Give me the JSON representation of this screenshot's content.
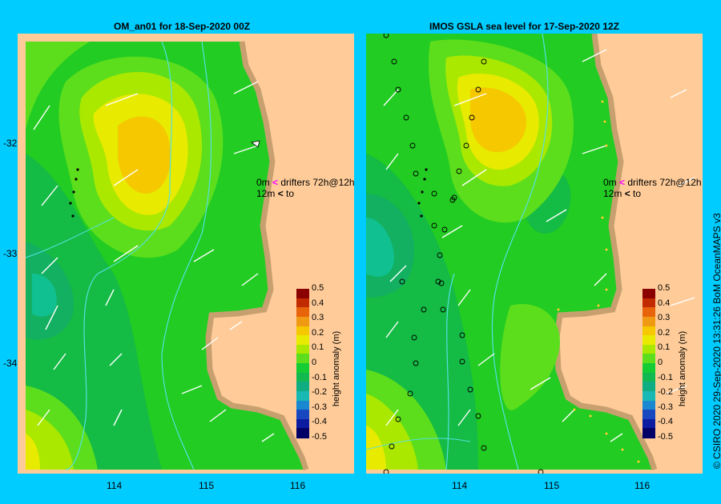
{
  "panels": [
    {
      "title": "OM_an01  for 18-Sep-2020 00Z"
    },
    {
      "title": "IMOS GSLA sea level  for 17-Sep-2020 12Z"
    }
  ],
  "xticks": [
    "114",
    "115",
    "116"
  ],
  "yticks": [
    "-32",
    "-33",
    "-34"
  ],
  "legend": {
    "depth0": "0m",
    "depth12": "12m",
    "drifters": "drifters 72h@12h",
    "to": "to",
    "depth0_arrow_color": "#ff00ff",
    "depth12_arrow_color": "#000000"
  },
  "colorbar": {
    "title": "height anomaly (m)",
    "labels": [
      "0.5",
      "0.4",
      "0.3",
      "0.2",
      "0.1",
      "0",
      "-0.1",
      "-0.2",
      "-0.3",
      "-0.4",
      "-0.5"
    ],
    "colors": [
      "#8b0000",
      "#c22a00",
      "#e8640a",
      "#f09a14",
      "#f5c800",
      "#e8ea00",
      "#aae800",
      "#5cde1c",
      "#14cc34",
      "#12b850",
      "#10ac82",
      "#18b8b4",
      "#1a88d0",
      "#1848c0",
      "#0c1ca0",
      "#000066"
    ]
  },
  "credit": "© CSIRO 2020    29-Sep-2020 13:31:26 BoM OceanMAPS v3"
}
